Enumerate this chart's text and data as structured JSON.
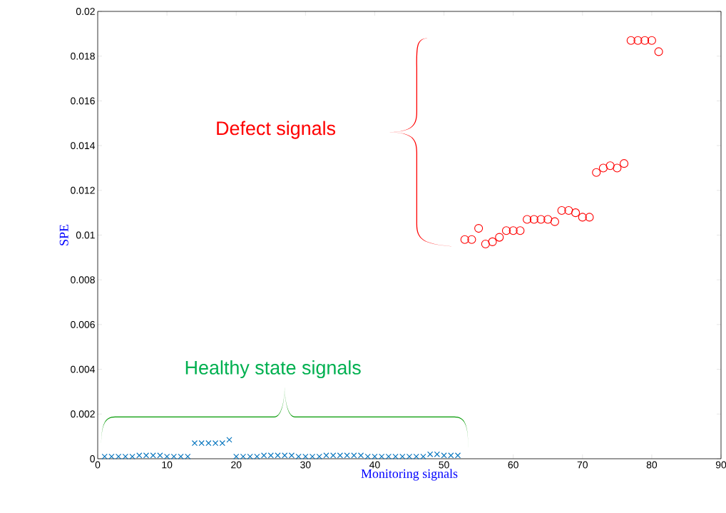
{
  "chart_data": {
    "type": "scatter",
    "xlabel": "Monitoring signals",
    "ylabel": "SPE",
    "xlim": [
      0,
      90
    ],
    "xticks": [
      0,
      10,
      20,
      30,
      40,
      50,
      60,
      70,
      80,
      90
    ],
    "ylim": [
      0,
      0.02
    ],
    "yticks": [
      0,
      0.002,
      0.004,
      0.006,
      0.008,
      0.01,
      0.012,
      0.014,
      0.016,
      0.018,
      0.02
    ],
    "grid": false,
    "annotations": [
      "Defect signals",
      "Healthy state signals"
    ],
    "series": [
      {
        "color": "#0072bd",
        "marker": "cross",
        "x": [
          1,
          2,
          3,
          4,
          5,
          6,
          7,
          8,
          9,
          10,
          11,
          12,
          13,
          14,
          15,
          16,
          17,
          18,
          19,
          20,
          21,
          22,
          23,
          24,
          25,
          26,
          27,
          28,
          29,
          30,
          31,
          32,
          33,
          34,
          35,
          36,
          37,
          38,
          39,
          40,
          41,
          42,
          43,
          44,
          45,
          46,
          47,
          48,
          49,
          50,
          51,
          52
        ],
        "values": [
          0.0001,
          0.0001,
          0.0001,
          0.0001,
          0.0001,
          0.00015,
          0.00015,
          0.00015,
          0.00015,
          0.0001,
          0.0001,
          0.0001,
          0.0001,
          0.0007,
          0.0007,
          0.0007,
          0.0007,
          0.0007,
          0.00085,
          0.0001,
          0.0001,
          0.0001,
          0.0001,
          0.00015,
          0.00015,
          0.00015,
          0.00015,
          0.00015,
          0.0001,
          0.0001,
          0.0001,
          0.0001,
          0.00015,
          0.00015,
          0.00015,
          0.00015,
          0.00015,
          0.00015,
          0.0001,
          0.0001,
          0.0001,
          0.0001,
          0.0001,
          0.0001,
          0.0001,
          0.0001,
          0.0001,
          0.0002,
          0.0002,
          0.00015,
          0.00015,
          0.00015
        ]
      },
      {
        "color": "#ff0000",
        "marker": "circle",
        "x": [
          53,
          54,
          55,
          56,
          57,
          58,
          59,
          60,
          61,
          62,
          63,
          64,
          65,
          66,
          67,
          68,
          69,
          70,
          71,
          72,
          73,
          74,
          75,
          76,
          77,
          78,
          79,
          80,
          81
        ],
        "values": [
          0.0098,
          0.0098,
          0.0103,
          0.0096,
          0.0097,
          0.0099,
          0.0102,
          0.0102,
          0.0102,
          0.0107,
          0.0107,
          0.0107,
          0.0107,
          0.0106,
          0.0111,
          0.0111,
          0.011,
          0.0108,
          0.0108,
          0.0128,
          0.013,
          0.0131,
          0.013,
          0.0132,
          0.0187,
          0.0187,
          0.0187,
          0.0187,
          0.0182
        ]
      }
    ]
  }
}
